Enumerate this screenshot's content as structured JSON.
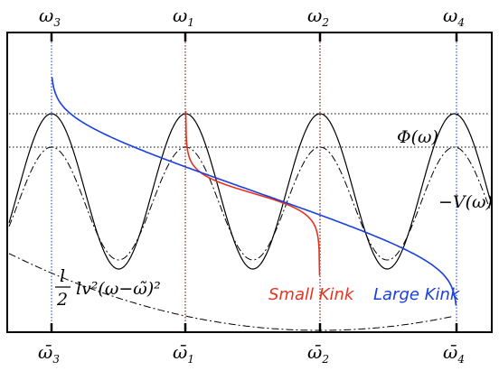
{
  "top_labels": [
    {
      "sym": "ω",
      "sub": "3"
    },
    {
      "sym": "ω",
      "sub": "1"
    },
    {
      "sym": "ω",
      "sub": "2"
    },
    {
      "sym": "ω",
      "sub": "4"
    }
  ],
  "bottom_labels": [
    {
      "sym": "ω̄",
      "sub": "3"
    },
    {
      "sym": "ω̄",
      "sub": "1"
    },
    {
      "sym": "ω̄",
      "sub": "2"
    },
    {
      "sym": "ω̄",
      "sub": "4"
    }
  ],
  "phi_label": "Φ(ω)",
  "neg_v_label": "−V(ω)",
  "formula": {
    "num": "l",
    "den": "2",
    "body": "lv²(ω−ω̃)²"
  },
  "small_kink_label": "Small Kink",
  "large_kink_label": "Large Kink",
  "colors": {
    "small_kink": "#e8321e",
    "large_kink": "#1a3fe0",
    "guide_blue": "#3355dd",
    "guide_dark": "#7a1f1f",
    "axes": "#000000"
  }
}
